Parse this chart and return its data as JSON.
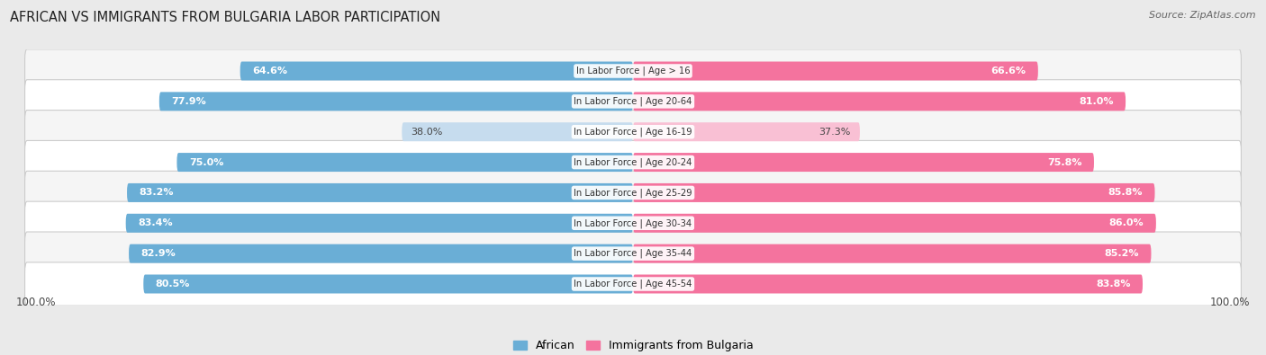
{
  "title": "AFRICAN VS IMMIGRANTS FROM BULGARIA LABOR PARTICIPATION",
  "source": "Source: ZipAtlas.com",
  "categories": [
    "In Labor Force | Age > 16",
    "In Labor Force | Age 20-64",
    "In Labor Force | Age 16-19",
    "In Labor Force | Age 20-24",
    "In Labor Force | Age 25-29",
    "In Labor Force | Age 30-34",
    "In Labor Force | Age 35-44",
    "In Labor Force | Age 45-54"
  ],
  "african_values": [
    64.6,
    77.9,
    38.0,
    75.0,
    83.2,
    83.4,
    82.9,
    80.5
  ],
  "bulgaria_values": [
    66.6,
    81.0,
    37.3,
    75.8,
    85.8,
    86.0,
    85.2,
    83.8
  ],
  "african_color": "#6aaed6",
  "bulgaria_color": "#f4739e",
  "african_light_color": "#c6dcee",
  "bulgaria_light_color": "#f9c0d4",
  "bg_color": "#eaeaea",
  "row_bg_odd": "#f5f5f5",
  "row_bg_even": "#ffffff",
  "legend_african": "African",
  "legend_bulgaria": "Immigrants from Bulgaria",
  "axis_label": "100.0%",
  "max_value": 100.0,
  "bar_height": 0.62
}
